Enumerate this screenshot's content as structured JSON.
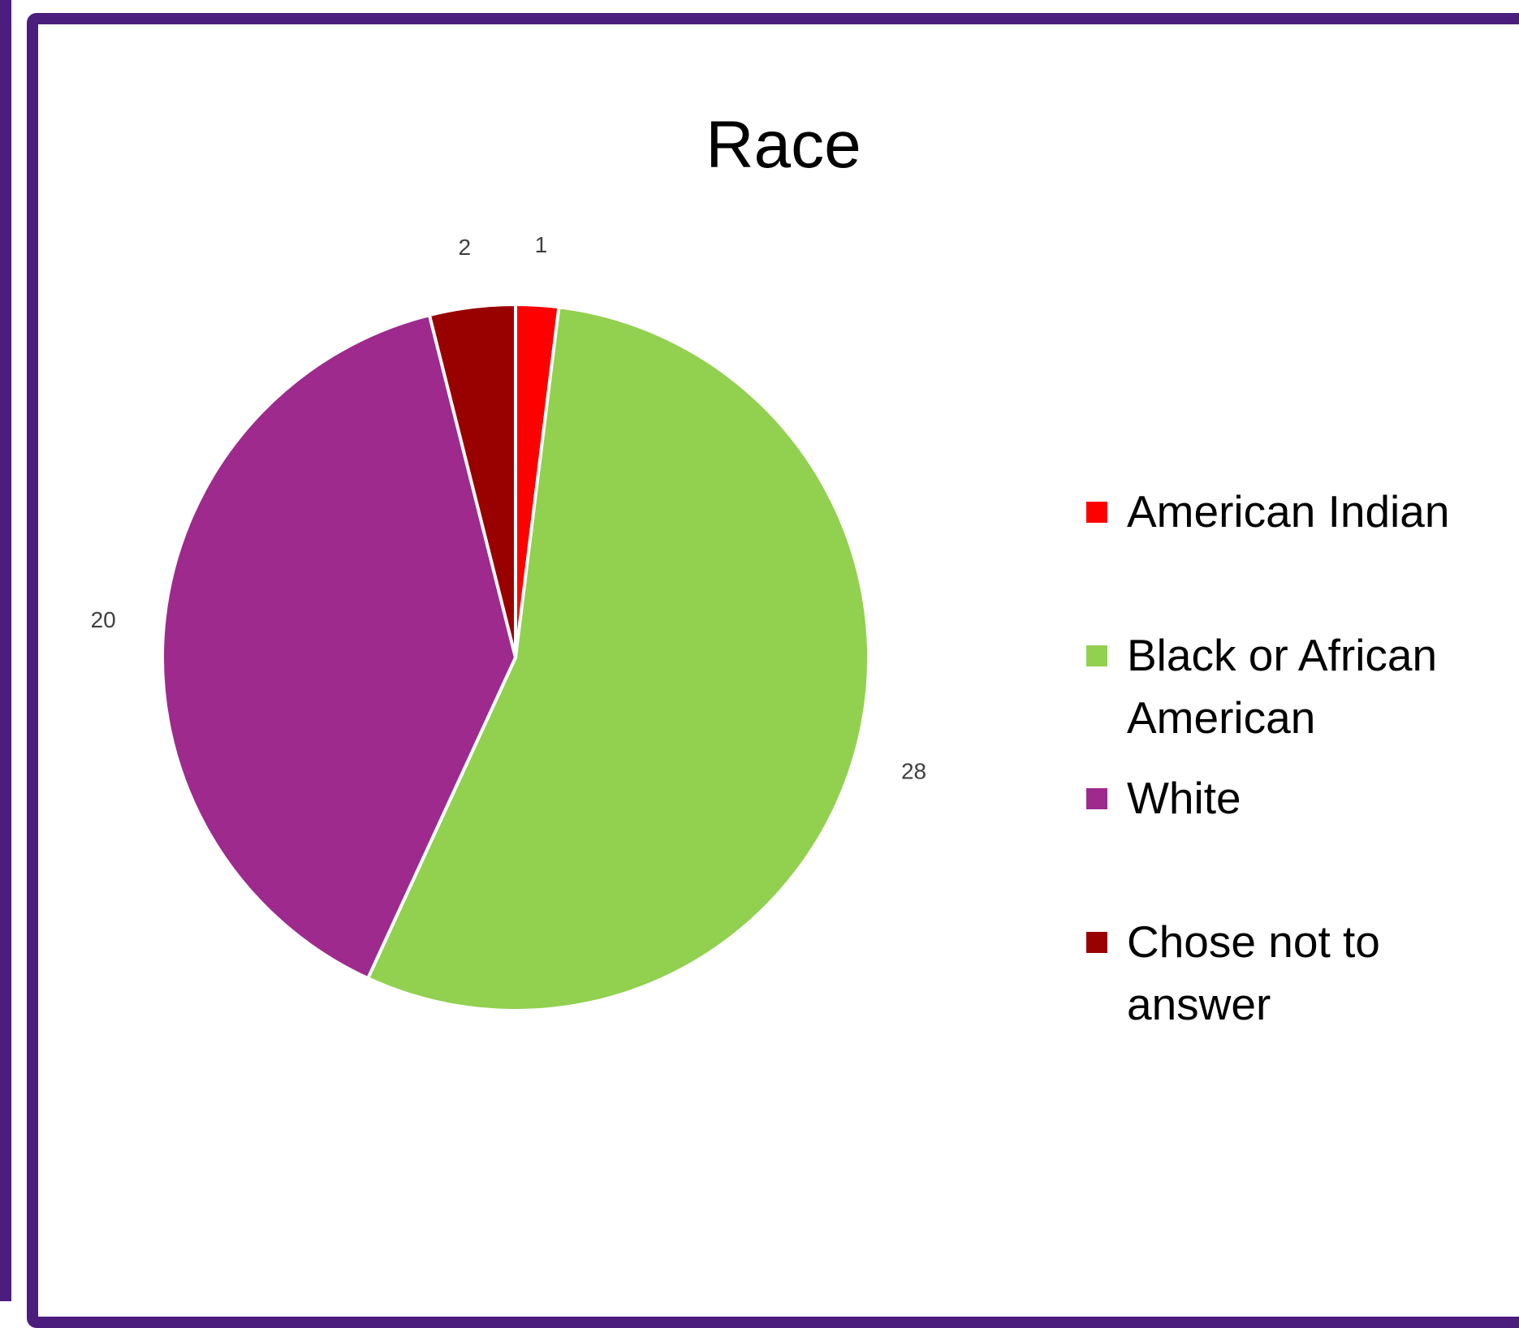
{
  "chart_data": {
    "type": "pie",
    "title": "Race",
    "categories": [
      "American Indian",
      "Black or African American",
      "White",
      "Chose not to answer"
    ],
    "values": [
      1,
      28,
      20,
      2
    ],
    "colors": [
      "#ff0000",
      "#92d050",
      "#9e2a8e",
      "#990000"
    ],
    "legend_position": "right",
    "start_angle_deg": 0,
    "direction": "clockwise"
  },
  "legend": {
    "items": [
      {
        "label_lines": [
          "American Indian"
        ],
        "color": "#ff0000"
      },
      {
        "label_lines": [
          "Black or African",
          "American"
        ],
        "color": "#92d050"
      },
      {
        "label_lines": [
          "White"
        ],
        "color": "#9e2a8e"
      },
      {
        "label_lines": [
          "Chose not to",
          "answer"
        ],
        "color": "#990000"
      }
    ]
  }
}
